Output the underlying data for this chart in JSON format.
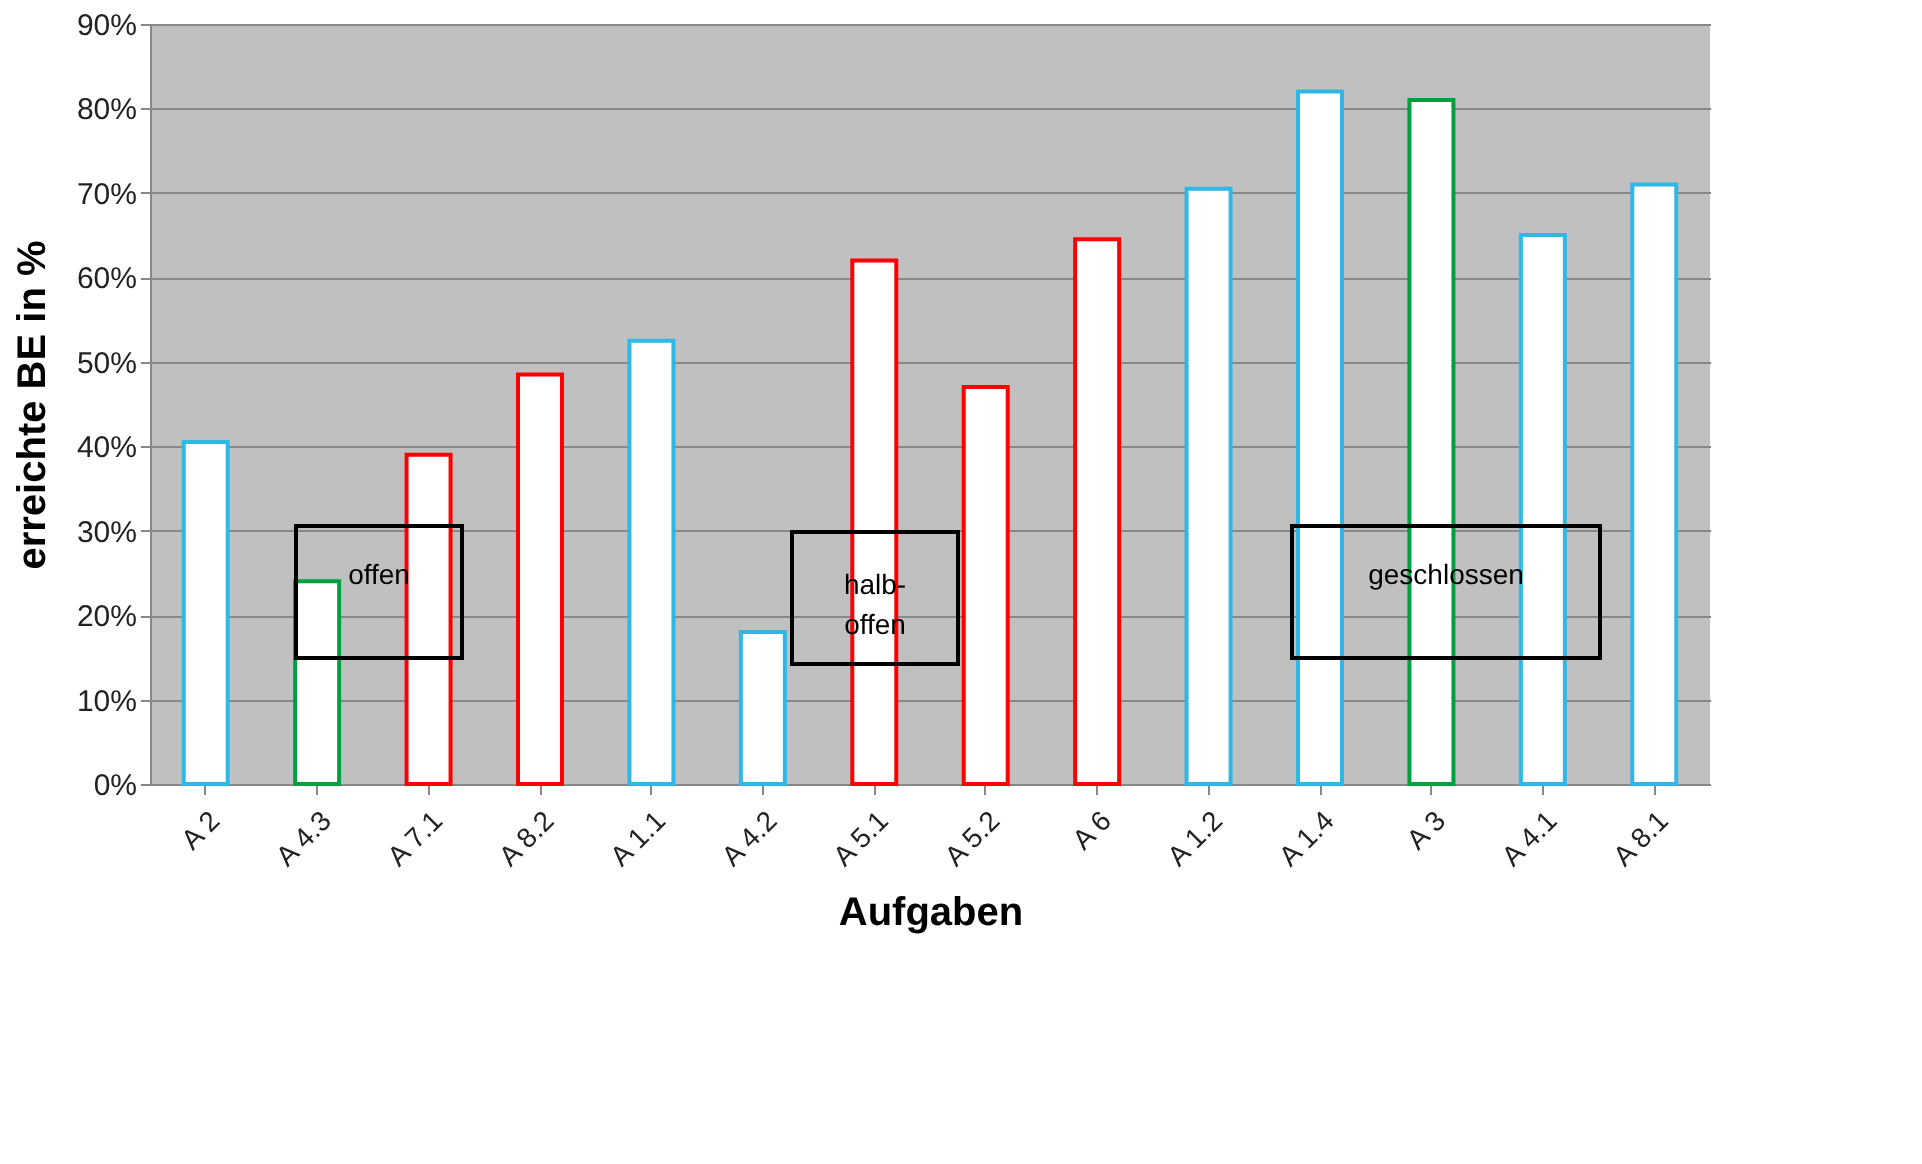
{
  "chart_data": {
    "type": "bar",
    "xlabel": "Aufgaben",
    "ylabel": "erreichte BE in %",
    "categories": [
      "A 2",
      "A 4.3",
      "A 7.1",
      "A 8.2",
      "A 1.1",
      "A 4.2",
      "A 5.1",
      "A 5.2",
      "A 6",
      "A 1.2",
      "A 1.4",
      "A 3",
      "A 4.1",
      "A 8.1"
    ],
    "values": [
      40.5,
      24,
      39,
      48.5,
      52.5,
      18,
      62,
      47,
      64.5,
      70.5,
      82,
      81,
      65,
      71
    ],
    "colors": [
      "#2eb8e6",
      "#00a040",
      "#ff0000",
      "#ff0000",
      "#2eb8e6",
      "#2eb8e6",
      "#ff0000",
      "#ff0000",
      "#ff0000",
      "#2eb8e6",
      "#2eb8e6",
      "#00a040",
      "#2eb8e6",
      "#2eb8e6"
    ],
    "ylim": [
      0,
      90
    ],
    "yticks": [
      {
        "value": 0,
        "label": "0%"
      },
      {
        "value": 10,
        "label": "10%"
      },
      {
        "value": 20,
        "label": "20%"
      },
      {
        "value": 30,
        "label": "30%"
      },
      {
        "value": 40,
        "label": "40%"
      },
      {
        "value": 50,
        "label": "50%"
      },
      {
        "value": 60,
        "label": "60%"
      },
      {
        "value": 70,
        "label": "70%"
      },
      {
        "value": 80,
        "label": "80%"
      },
      {
        "value": 90,
        "label": "90%"
      }
    ],
    "grid": "y",
    "annotations": [
      "offen",
      "halb-offen",
      "geschlossen"
    ]
  }
}
